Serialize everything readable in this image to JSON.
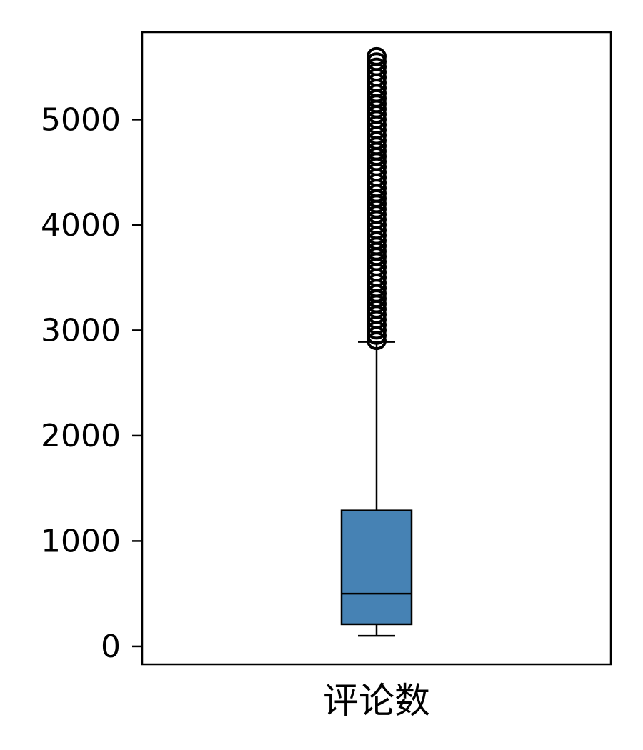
{
  "chart_data": {
    "type": "box",
    "categories": [
      "评论数"
    ],
    "box": {
      "whisker_low": 100,
      "q1": 210,
      "median": 500,
      "q3": 1290,
      "whisker_high": 2890
    },
    "outliers": [
      2900,
      2950,
      3000,
      3050,
      3100,
      3150,
      3200,
      3250,
      3300,
      3350,
      3400,
      3450,
      3500,
      3550,
      3600,
      3650,
      3700,
      3750,
      3800,
      3850,
      3900,
      3950,
      4000,
      4050,
      4100,
      4150,
      4200,
      4250,
      4300,
      4350,
      4400,
      4450,
      4500,
      4550,
      4600,
      4650,
      4700,
      4750,
      4800,
      4850,
      4900,
      4950,
      5000,
      5050,
      5100,
      5150,
      5200,
      5250,
      5300,
      5350,
      5400,
      5450,
      5500,
      5550,
      5600
    ],
    "yticks": [
      0,
      1000,
      2000,
      3000,
      4000,
      5000
    ],
    "ylim": [
      -170,
      5830
    ],
    "box_color": "#4682B4",
    "grid": false
  }
}
